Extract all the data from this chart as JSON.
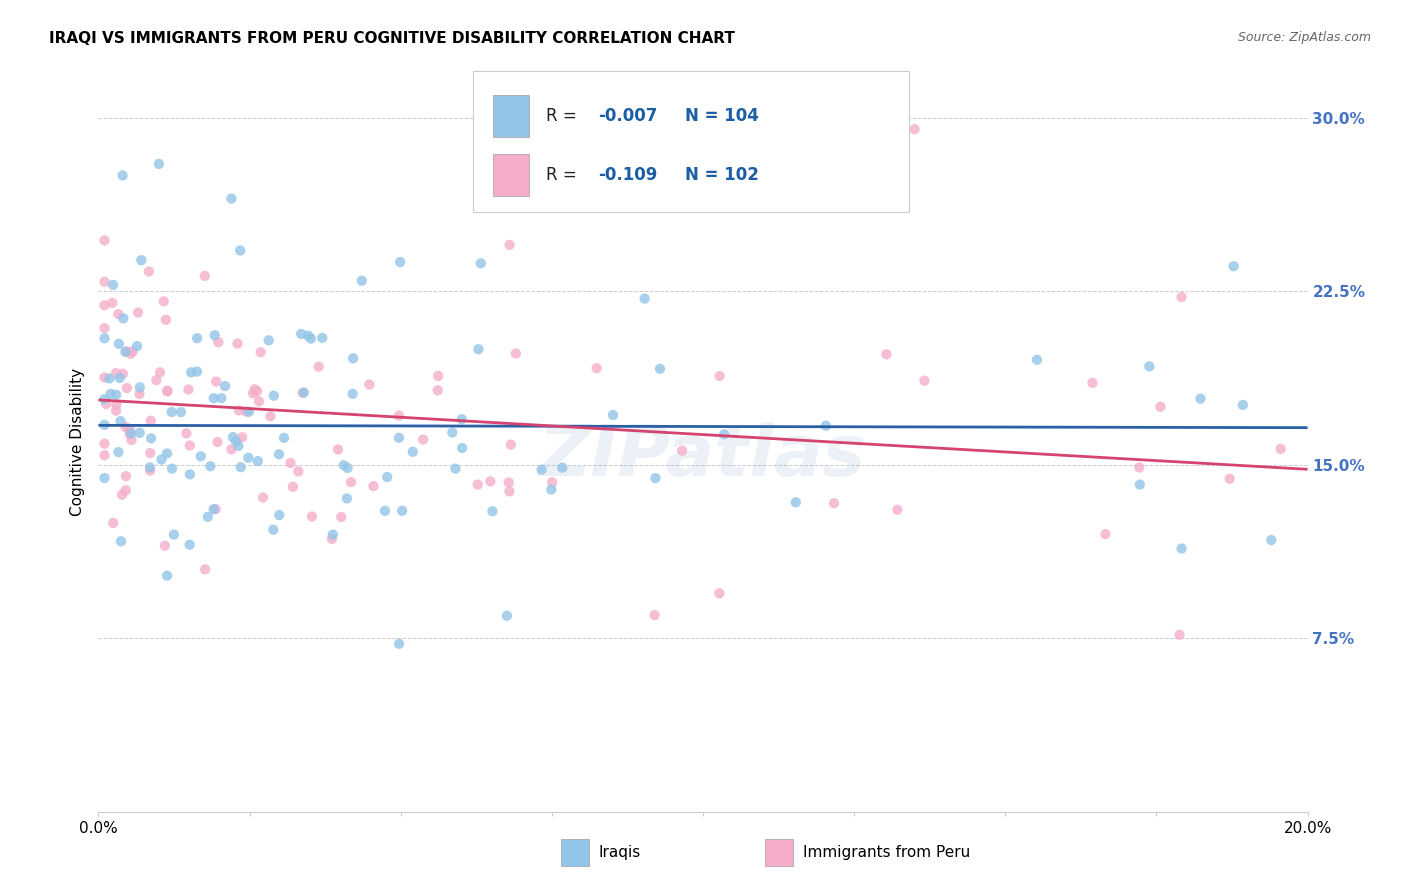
{
  "title": "IRAQI VS IMMIGRANTS FROM PERU COGNITIVE DISABILITY CORRELATION CHART",
  "source": "Source: ZipAtlas.com",
  "ylabel": "Cognitive Disability",
  "watermark": "ZIPatlas",
  "xmin": 0.0,
  "xmax": 0.2,
  "ymin": 0.0,
  "ymax": 0.32,
  "yticks": [
    0.075,
    0.15,
    0.225,
    0.3
  ],
  "ytick_labels": [
    "7.5%",
    "15.0%",
    "22.5%",
    "30.0%"
  ],
  "color_iraqi": "#92C5E8",
  "color_peru": "#F4AECA",
  "line_color_iraqi": "#2B5FA6",
  "line_color_peru": "#D4446E",
  "scatter_alpha": 0.8,
  "scatter_size": 55,
  "legend_r1_val": "-0.007",
  "legend_n1": "N = 104",
  "legend_r2_val": "-0.109",
  "legend_n2": "N = 102",
  "iraqi_line_y0": 0.167,
  "iraqi_line_y1": 0.166,
  "peru_line_y0": 0.178,
  "peru_line_y1": 0.148
}
